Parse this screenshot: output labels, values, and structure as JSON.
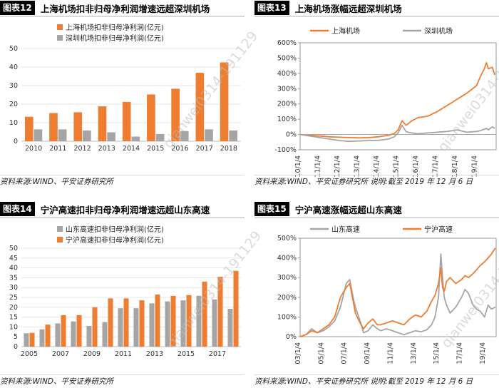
{
  "colors": {
    "orange": "#ed7d31",
    "gray": "#a5a5a5",
    "axis": "#888888"
  },
  "panels": [
    {
      "number": "图表12",
      "title": "上海机场扣非归母净利润增速远超深圳机场",
      "source": "资料来源:WIND、平安证券研究所"
    },
    {
      "number": "图表13",
      "title": "上海机场涨幅远超深圳机场",
      "source": "资料来源:WIND、平安证券研究所  说明:截至 2019 年 12 月 6 日"
    },
    {
      "number": "图表14",
      "title": "宁沪高速扣非归母净利润增速远超山东高速",
      "source": "资料来源:WIND、平安证券研究所"
    },
    {
      "number": "图表15",
      "title": "宁沪高速涨幅远超山东高速",
      "source": "资料来源:WIND、平安证券研究所  说明:截至 2019 年 12 月 6 日"
    }
  ],
  "watermark": "qianwei0314-191129",
  "chart_data": [
    {
      "type": "bar",
      "categories": [
        "2010",
        "2011",
        "2012",
        "2013",
        "2014",
        "2015",
        "2016",
        "2017",
        "2018"
      ],
      "series": [
        {
          "name": "上海机场扣非归母净利润(亿元)",
          "color": "#ed7d31",
          "values": [
            13.2,
            15.2,
            15.6,
            18.8,
            21.2,
            25.2,
            28.3,
            36.9,
            42.5
          ]
        },
        {
          "name": "深圳机场扣非归母净利润(亿元)",
          "color": "#a5a5a5",
          "values": [
            6.4,
            6.4,
            5.8,
            4.8,
            2.5,
            3.9,
            5.5,
            6.4,
            5.8
          ]
        }
      ],
      "ylim": [
        0,
        50
      ],
      "yticks": [
        "0",
        "10",
        "20",
        "30",
        "40",
        "50"
      ],
      "legend_position": "top-left"
    },
    {
      "type": "line",
      "xticks": [
        "10/1/4",
        "11/1/4",
        "12/1/4",
        "13/1/4",
        "14/1/4",
        "15/1/4",
        "16/1/4",
        "17/1/4",
        "18/1/4",
        "19/1/4"
      ],
      "x": [
        2010.0,
        2010.5,
        2011.0,
        2011.5,
        2012.0,
        2012.5,
        2013.0,
        2013.5,
        2014.0,
        2014.5,
        2014.8,
        2015.0,
        2015.2,
        2015.4,
        2015.5,
        2015.7,
        2016.0,
        2016.5,
        2017.0,
        2017.5,
        2018.0,
        2018.5,
        2019.0,
        2019.2,
        2019.4,
        2019.5,
        2019.6,
        2019.8,
        2019.93
      ],
      "series": [
        {
          "name": "上海机场",
          "color": "#ed7d31",
          "values": [
            0,
            -5,
            -10,
            -15,
            -18,
            -20,
            -22,
            -20,
            -15,
            -5,
            5,
            30,
            90,
            60,
            70,
            90,
            110,
            120,
            150,
            190,
            230,
            270,
            320,
            380,
            430,
            470,
            430,
            440,
            390
          ]
        },
        {
          "name": "深圳机场",
          "color": "#a5a5a5",
          "values": [
            0,
            -10,
            -20,
            -30,
            -40,
            -45,
            -42,
            -40,
            -38,
            -30,
            -15,
            10,
            60,
            20,
            15,
            10,
            5,
            10,
            15,
            20,
            30,
            15,
            20,
            25,
            35,
            40,
            30,
            50,
            40
          ]
        }
      ],
      "ylim": [
        -100,
        600
      ],
      "yticks": [
        "-100%",
        "0%",
        "100%",
        "200%",
        "300%",
        "400%",
        "500%",
        "600%"
      ],
      "legend_position": "top-left"
    },
    {
      "type": "bar",
      "categories": [
        "2005",
        "2006",
        "2007",
        "2008",
        "2009",
        "2010",
        "2011",
        "2012",
        "2013",
        "2014",
        "2015",
        "2016",
        "2017",
        "2018"
      ],
      "xticks": [
        "2005",
        "2007",
        "2009",
        "2011",
        "2013",
        "2015",
        "2017"
      ],
      "series": [
        {
          "name": "山东高速扣非归母净利润(亿元)",
          "color": "#a5a5a5",
          "values": [
            6.8,
            8.8,
            11.8,
            12.8,
            10.5,
            12.5,
            19.5,
            19.5,
            22.0,
            23.0,
            23.5,
            25.8,
            24.0,
            19.2
          ]
        },
        {
          "name": "宁沪高速扣非归母净利润(亿元)",
          "color": "#ed7d31",
          "values": [
            7.0,
            11.2,
            16.0,
            16.0,
            20.0,
            24.5,
            24.5,
            23.5,
            26.5,
            25.8,
            26.2,
            33.0,
            35.5,
            38.5
          ]
        }
      ],
      "ylim": [
        0,
        50
      ],
      "yticks": [
        "0",
        "5",
        "10",
        "15",
        "20",
        "25",
        "30",
        "35",
        "40",
        "45",
        "50"
      ],
      "legend_position": "top-left"
    },
    {
      "type": "line",
      "xticks": [
        "03/1/4",
        "05/1/4",
        "07/1/4",
        "09/1/4",
        "11/1/4",
        "13/1/4",
        "15/1/4",
        "17/1/4",
        "19/1/4"
      ],
      "x": [
        2003.0,
        2003.5,
        2004.0,
        2004.5,
        2005.0,
        2005.5,
        2006.0,
        2006.5,
        2007.0,
        2007.3,
        2007.6,
        2007.8,
        2008.2,
        2008.5,
        2008.9,
        2009.3,
        2009.7,
        2010.0,
        2010.5,
        2011.0,
        2011.5,
        2012.0,
        2012.5,
        2013.0,
        2013.5,
        2014.0,
        2014.4,
        2014.7,
        2015.0,
        2015.2,
        2015.35,
        2015.5,
        2015.7,
        2016.0,
        2016.5,
        2017.0,
        2017.3,
        2017.6,
        2018.0,
        2018.3,
        2018.6,
        2019.0,
        2019.3,
        2019.6,
        2019.93
      ],
      "series": [
        {
          "name": "山东高速",
          "color": "#a5a5a5",
          "values": [
            0,
            10,
            40,
            20,
            30,
            50,
            80,
            150,
            270,
            290,
            200,
            150,
            80,
            20,
            30,
            60,
            40,
            30,
            40,
            30,
            20,
            10,
            20,
            30,
            25,
            35,
            60,
            100,
            200,
            420,
            300,
            200,
            160,
            120,
            150,
            200,
            240,
            220,
            160,
            140,
            130,
            100,
            160,
            140,
            150
          ]
        },
        {
          "name": "宁沪高速",
          "color": "#ed7d31",
          "values": [
            0,
            10,
            30,
            20,
            40,
            60,
            100,
            200,
            250,
            270,
            180,
            120,
            70,
            40,
            70,
            90,
            60,
            60,
            70,
            80,
            70,
            60,
            90,
            110,
            100,
            130,
            180,
            210,
            270,
            350,
            250,
            230,
            280,
            300,
            270,
            290,
            310,
            300,
            320,
            340,
            360,
            380,
            400,
            420,
            450
          ]
        }
      ],
      "ylim": [
        0,
        500
      ],
      "yticks": [
        "0%",
        "100%",
        "200%",
        "300%",
        "400%",
        "500%"
      ],
      "legend_position": "top-left"
    }
  ]
}
